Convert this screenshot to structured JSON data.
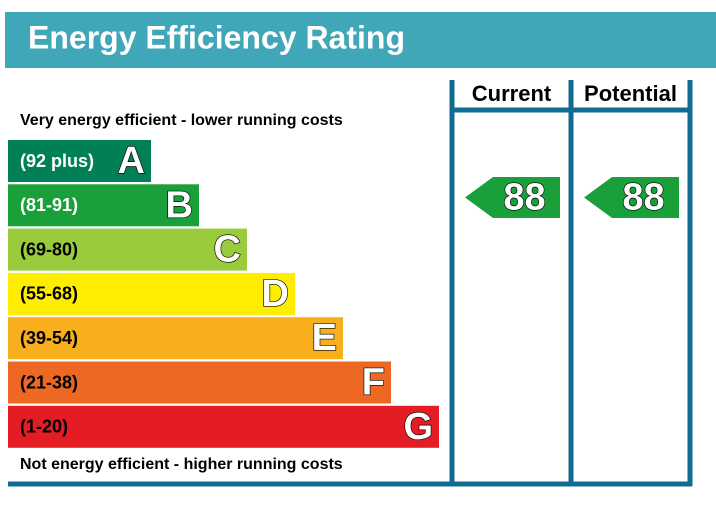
{
  "header": {
    "title": "Energy Efficiency Rating"
  },
  "top_label": "Very energy efficient - lower running costs",
  "bottom_label": "Not energy efficient - higher running costs",
  "bands": [
    {
      "range": "(92 plus)",
      "letter": "A",
      "color": "#008054"
    },
    {
      "range": "(81-91)",
      "letter": "B",
      "color": "#19a03a"
    },
    {
      "range": "(69-80)",
      "letter": "C",
      "color": "#9acb3c"
    },
    {
      "range": "(55-68)",
      "letter": "D",
      "color": "#ffed00"
    },
    {
      "range": "(39-54)",
      "letter": "E",
      "color": "#f7af1d"
    },
    {
      "range": "(21-38)",
      "letter": "F",
      "color": "#ed6823"
    },
    {
      "range": "(1-20)",
      "letter": "G",
      "color": "#e31d23"
    }
  ],
  "columns": [
    {
      "header": "Current",
      "value": 88,
      "color": "#19a03a"
    },
    {
      "header": "Potential",
      "value": 88,
      "color": "#19a03a"
    }
  ]
}
